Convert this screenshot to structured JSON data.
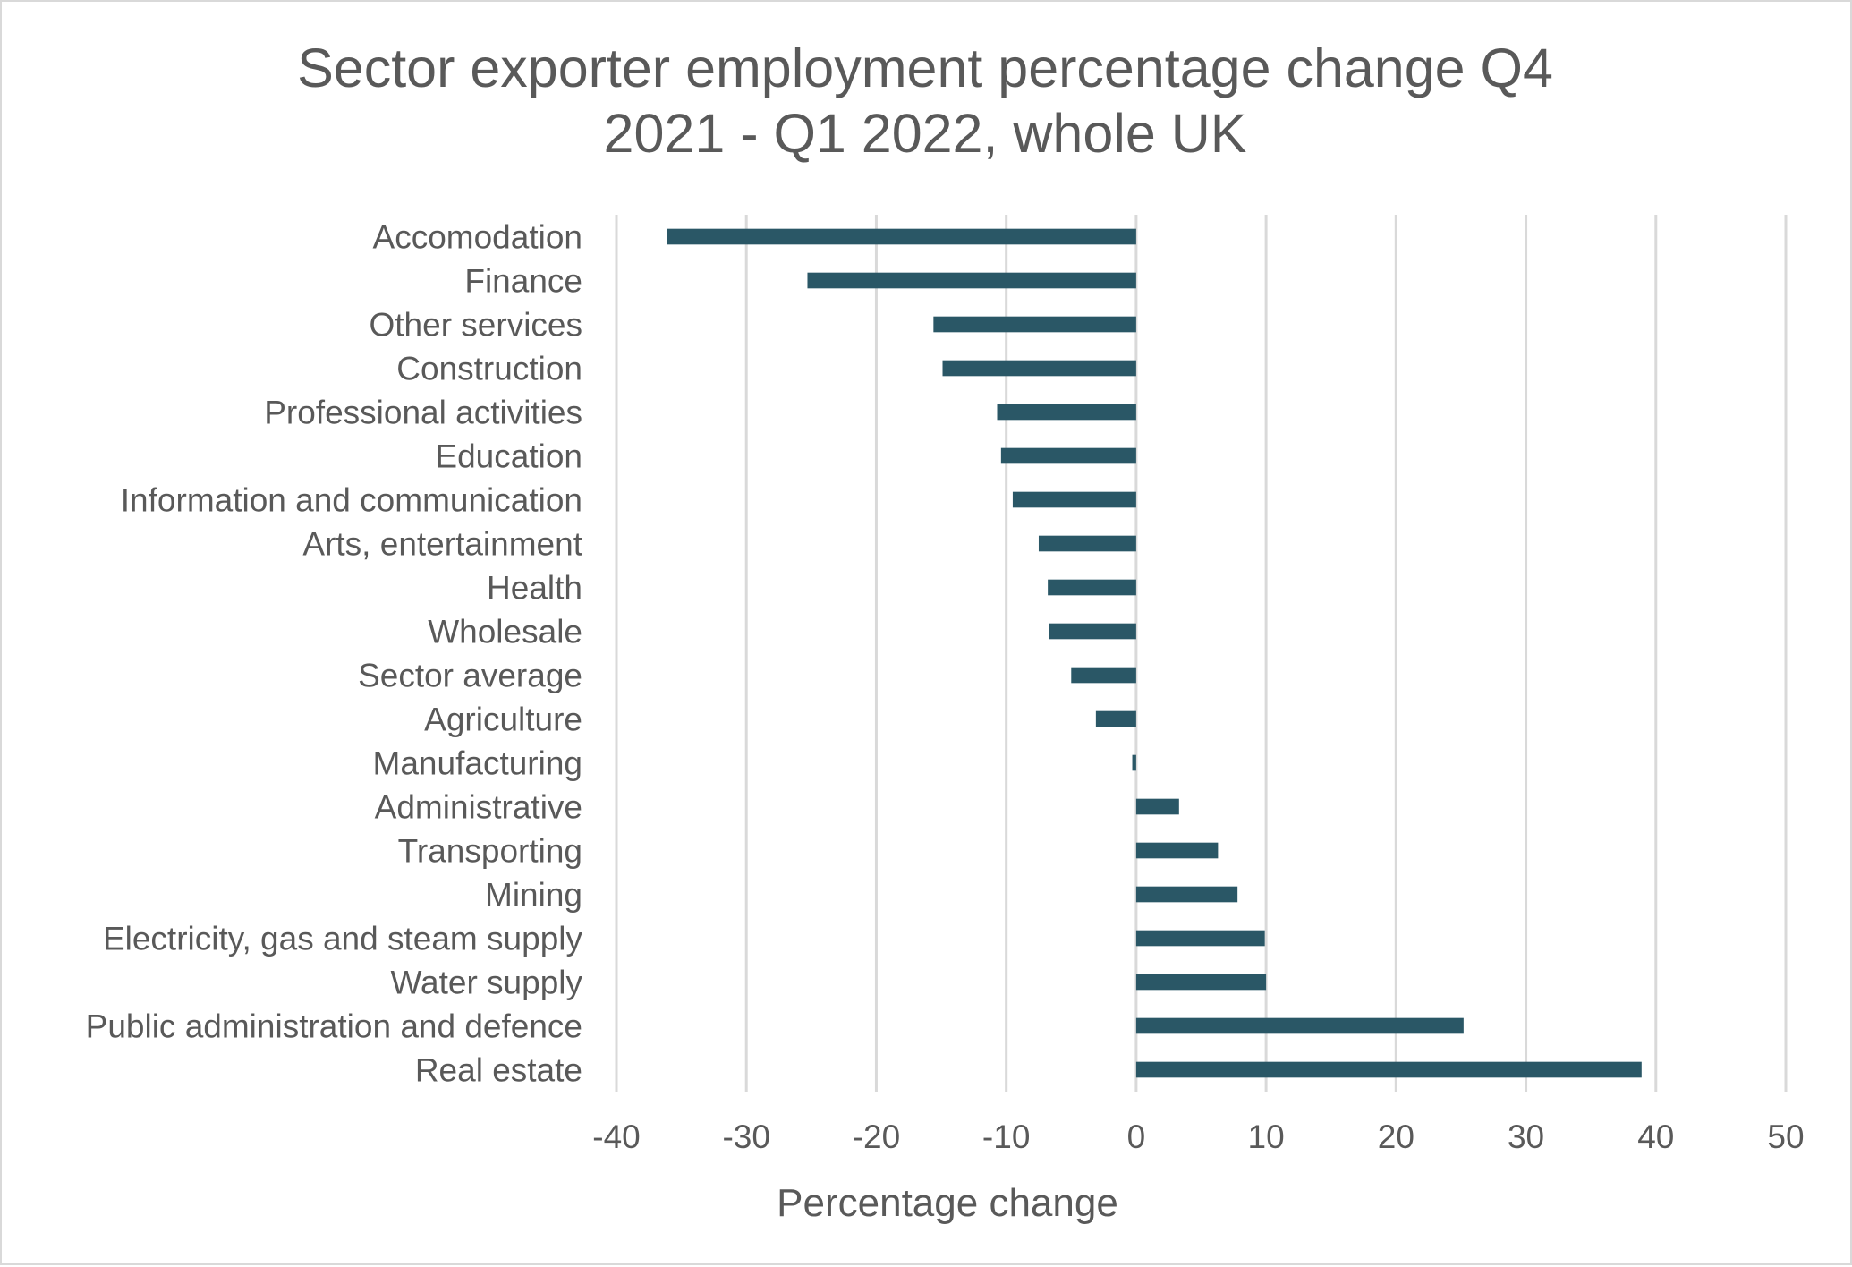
{
  "chart_data": {
    "type": "bar",
    "orientation": "horizontal",
    "title_lines": [
      "Sector exporter employment percentage change Q4",
      "2021 - Q1 2022, whole UK"
    ],
    "title": "Sector exporter employment percentage change Q4 2021 - Q1 2022, whole UK",
    "xlabel": "Percentage change",
    "ylabel": "",
    "xlim": [
      -40,
      50
    ],
    "xticks": [
      -40,
      -30,
      -20,
      -10,
      0,
      10,
      20,
      30,
      40,
      50
    ],
    "xtick_labels": [
      "-40",
      "-30",
      "-20",
      "-10",
      "0",
      "10",
      "20",
      "30",
      "40",
      "50"
    ],
    "grid": "vertical",
    "legend": "none",
    "bar_color": "#2a5766",
    "categories": [
      "Accomodation",
      "Finance",
      "Other services",
      "Construction",
      "Professional activities",
      "Education",
      "Information and communication",
      "Arts, entertainment",
      "Health",
      "Wholesale",
      "Sector average",
      "Agriculture",
      "Manufacturing",
      "Administrative",
      "Transporting",
      "Mining",
      "Electricity, gas and steam supply",
      "Water supply",
      "Public administration and defence",
      "Real estate"
    ],
    "values": [
      -36.1,
      -25.3,
      -15.6,
      -14.9,
      -10.7,
      -10.4,
      -9.5,
      -7.5,
      -6.8,
      -6.7,
      -5.0,
      -3.1,
      -0.3,
      3.3,
      6.3,
      7.8,
      9.9,
      10.0,
      25.2,
      38.9
    ]
  }
}
